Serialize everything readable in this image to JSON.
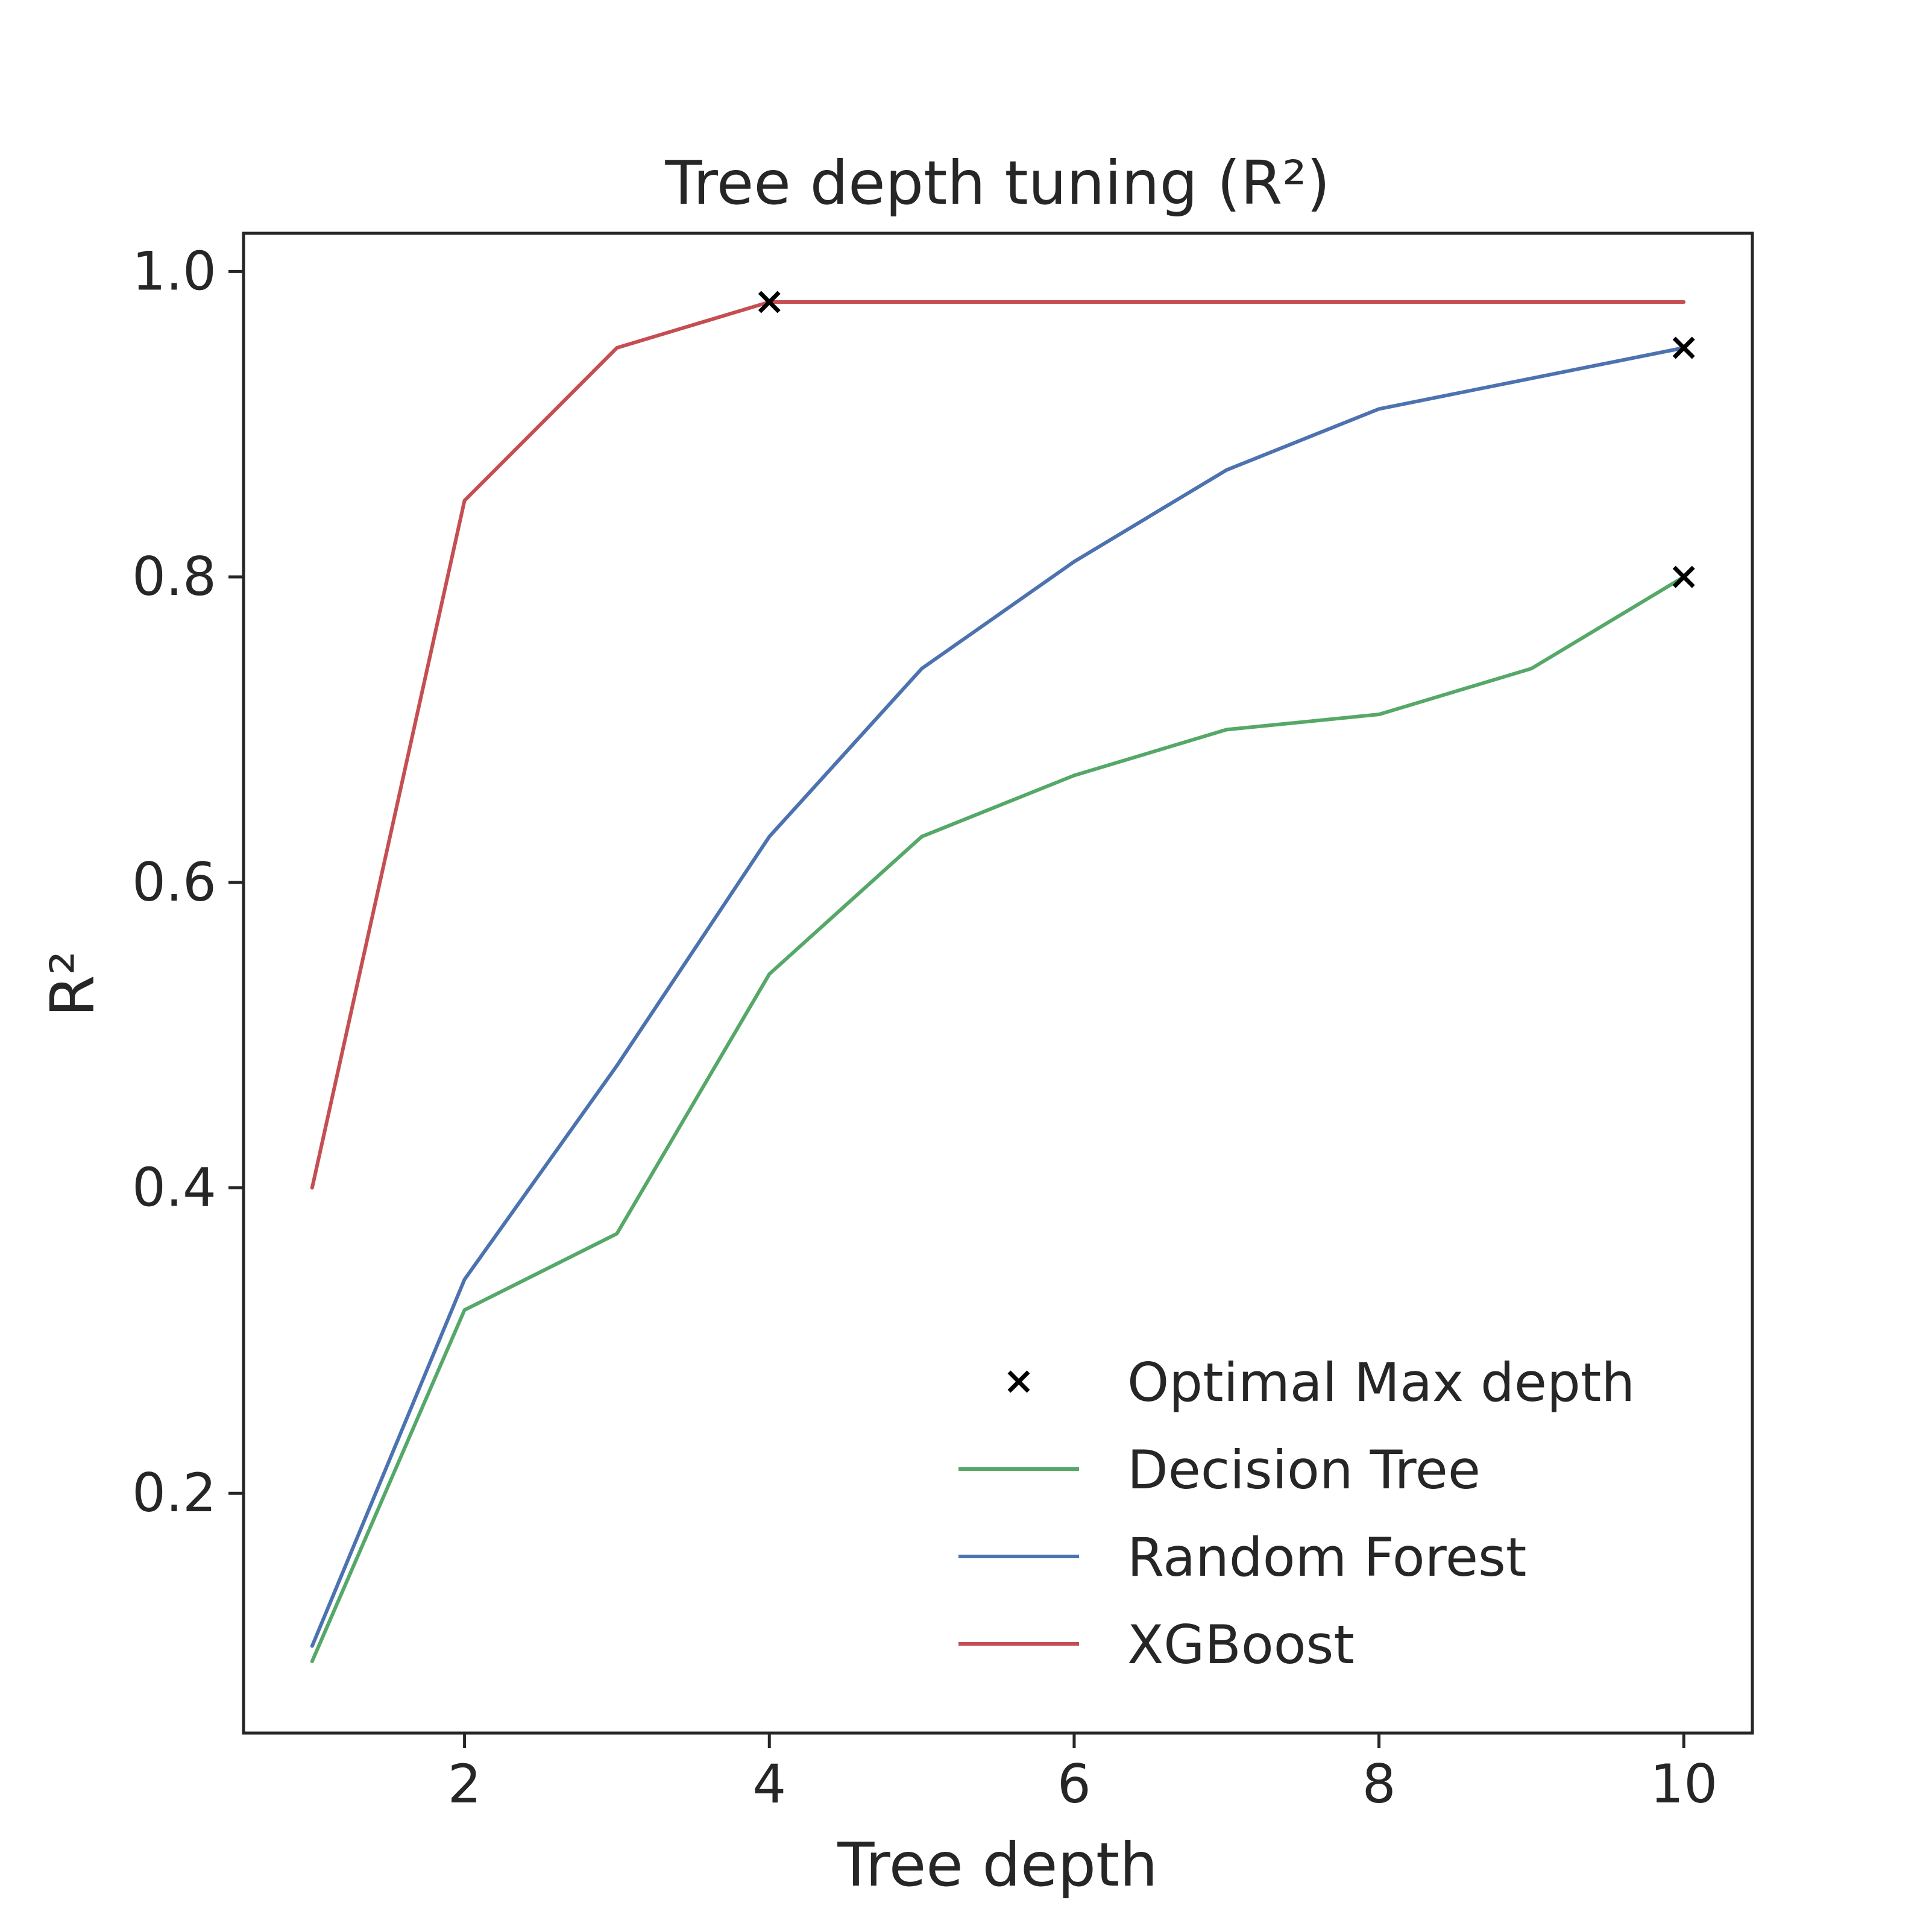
{
  "chart_data": {
    "type": "line",
    "title": "Tree depth tuning (R²)",
    "xlabel": "Tree depth",
    "ylabel": "R²",
    "xlim": [
      0.55,
      10.45
    ],
    "ylim": [
      0.043,
      1.025
    ],
    "xticks": [
      2,
      4,
      6,
      8,
      10
    ],
    "yticks": [
      0.2,
      0.4,
      0.6,
      0.8,
      1.0
    ],
    "xtick_labels": [
      "2",
      "4",
      "6",
      "8",
      "10"
    ],
    "ytick_labels": [
      "0.2",
      "0.4",
      "0.6",
      "0.8",
      "1.0"
    ],
    "grid": false,
    "legend_position": "lower-right",
    "x": [
      1,
      2,
      3,
      4,
      5,
      6,
      7,
      8,
      9,
      10
    ],
    "series": [
      {
        "name": "Decision Tree",
        "color": "#55a868",
        "values": [
          0.09,
          0.32,
          0.37,
          0.54,
          0.63,
          0.67,
          0.7,
          0.71,
          0.74,
          0.8
        ]
      },
      {
        "name": "Random Forest",
        "color": "#4c72b0",
        "values": [
          0.1,
          0.34,
          0.48,
          0.63,
          0.74,
          0.81,
          0.87,
          0.91,
          0.93,
          0.95
        ]
      },
      {
        "name": "XGBoost",
        "color": "#c44e52",
        "values": [
          0.4,
          0.85,
          0.95,
          0.98,
          0.98,
          0.98,
          0.98,
          0.98,
          0.98,
          0.98
        ]
      }
    ],
    "optimal_points": {
      "name": "Optimal Max depth",
      "color": "#000000",
      "marker": "x",
      "points": [
        {
          "x": 4,
          "y": 0.98
        },
        {
          "x": 10,
          "y": 0.95
        },
        {
          "x": 10,
          "y": 0.8
        }
      ]
    }
  }
}
